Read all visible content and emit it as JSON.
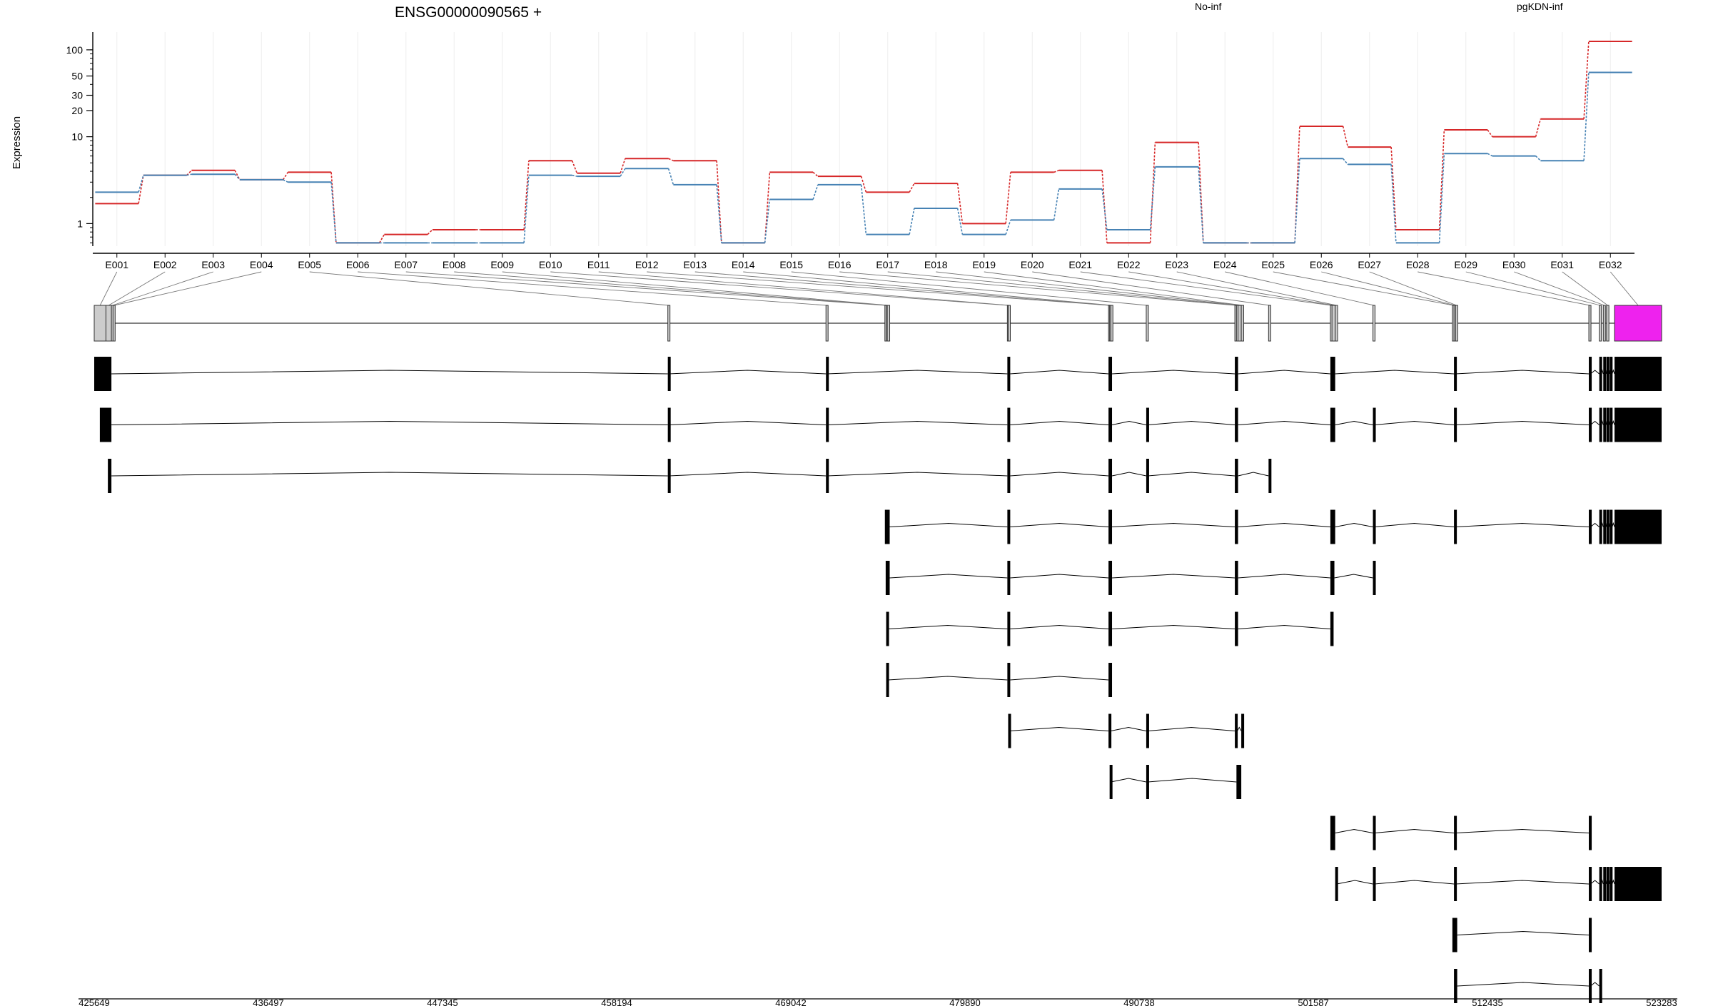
{
  "chart_data": {
    "type": "line",
    "title": "ENSG00000090565 +",
    "ylabel": "Expression",
    "yscale": "log",
    "ylim": [
      0.55,
      160
    ],
    "yticks": [
      1,
      10,
      20,
      30,
      50,
      100
    ],
    "grid": true,
    "legend_placement": "top",
    "categories": [
      "E001",
      "E002",
      "E003",
      "E004",
      "E005",
      "E006",
      "E007",
      "E008",
      "E009",
      "E010",
      "E011",
      "E012",
      "E013",
      "E014",
      "E015",
      "E016",
      "E017",
      "E018",
      "E019",
      "E020",
      "E021",
      "E022",
      "E023",
      "E024",
      "E025",
      "E026",
      "E027",
      "E028",
      "E029",
      "E030",
      "E031",
      "E032"
    ],
    "series": [
      {
        "name": "No-inf",
        "color": "#d62728",
        "values": [
          1.7,
          3.6,
          4.1,
          3.2,
          3.9,
          0.6,
          0.75,
          0.85,
          0.85,
          5.3,
          3.8,
          5.6,
          5.3,
          0.6,
          3.9,
          3.5,
          2.3,
          2.9,
          1.0,
          3.9,
          4.1,
          0.6,
          8.6,
          0.6,
          0.6,
          13.2,
          7.6,
          0.85,
          12.0,
          10.0,
          16.0,
          125.0
        ]
      },
      {
        "name": "pgKDN-inf",
        "color": "#4682b4",
        "values": [
          2.3,
          3.6,
          3.7,
          3.2,
          3.0,
          0.6,
          0.6,
          0.6,
          0.6,
          3.6,
          3.5,
          4.3,
          2.8,
          0.6,
          1.9,
          2.8,
          0.75,
          1.5,
          0.75,
          1.1,
          2.5,
          0.85,
          4.5,
          0.6,
          0.6,
          5.6,
          4.8,
          0.6,
          6.4,
          6.0,
          5.3,
          55.0
        ]
      }
    ],
    "genomic_axis": {
      "range": [
        425649,
        523283
      ],
      "tick_labels": [
        425649,
        436497,
        447345,
        458194,
        469042,
        479890,
        490738,
        501587,
        512435,
        523283
      ]
    },
    "exons": [
      {
        "id": "E001",
        "start": 425649,
        "end": 426380
      },
      {
        "id": "E002",
        "start": 426380,
        "end": 426720
      },
      {
        "id": "E003",
        "start": 426720,
        "end": 426820
      },
      {
        "id": "E004",
        "start": 426820,
        "end": 426850
      },
      {
        "id": "E005",
        "start": 461380,
        "end": 461450
      },
      {
        "id": "E006",
        "start": 471230,
        "end": 471300
      },
      {
        "id": "E007",
        "start": 474900,
        "end": 474980
      },
      {
        "id": "E008",
        "start": 474980,
        "end": 475050
      },
      {
        "id": "E009",
        "start": 475050,
        "end": 475200
      },
      {
        "id": "E010",
        "start": 482530,
        "end": 482580
      },
      {
        "id": "E011",
        "start": 482580,
        "end": 482700
      },
      {
        "id": "E012",
        "start": 488830,
        "end": 488900
      },
      {
        "id": "E013",
        "start": 488900,
        "end": 488970
      },
      {
        "id": "E014",
        "start": 488970,
        "end": 489050
      },
      {
        "id": "E015",
        "start": 491180,
        "end": 491280
      },
      {
        "id": "E016",
        "start": 496700,
        "end": 496800
      },
      {
        "id": "E017",
        "start": 496800,
        "end": 496900
      },
      {
        "id": "E018",
        "start": 496900,
        "end": 497100
      },
      {
        "id": "E019",
        "start": 497100,
        "end": 497250
      },
      {
        "id": "E020",
        "start": 498800,
        "end": 498900
      },
      {
        "id": "E021",
        "start": 502650,
        "end": 502750
      },
      {
        "id": "E022",
        "start": 502750,
        "end": 502950
      },
      {
        "id": "E023",
        "start": 502950,
        "end": 503100
      },
      {
        "id": "E024",
        "start": 505300,
        "end": 505400
      },
      {
        "id": "E025",
        "start": 510250,
        "end": 510350
      },
      {
        "id": "E026",
        "start": 510350,
        "end": 510450
      },
      {
        "id": "E027",
        "start": 510450,
        "end": 510550
      },
      {
        "id": "E028",
        "start": 518750,
        "end": 518860
      },
      {
        "id": "E029",
        "start": 519400,
        "end": 519520
      },
      {
        "id": "E030",
        "start": 519650,
        "end": 519780
      },
      {
        "id": "E031",
        "start": 519850,
        "end": 520000
      },
      {
        "id": "E032",
        "start": 520350,
        "end": 523283
      }
    ],
    "transcripts": [
      [
        [
          425649,
          426720
        ],
        [
          461380,
          461450
        ],
        [
          471230,
          471300
        ],
        [
          482530,
          482700
        ],
        [
          488830,
          489050
        ],
        [
          496700,
          496900
        ],
        [
          502650,
          502950
        ],
        [
          510350,
          510450
        ],
        [
          518750,
          518860
        ],
        [
          519400,
          519520
        ],
        [
          519650,
          519780
        ],
        [
          519850,
          520000
        ],
        [
          520050,
          520200
        ],
        [
          520350,
          523283
        ]
      ],
      [
        [
          426000,
          426720
        ],
        [
          461380,
          461450
        ],
        [
          471230,
          471300
        ],
        [
          482530,
          482700
        ],
        [
          488830,
          489050
        ],
        [
          491180,
          491280
        ],
        [
          496700,
          496900
        ],
        [
          502650,
          502950
        ],
        [
          505300,
          505400
        ],
        [
          510350,
          510450
        ],
        [
          518750,
          518860
        ],
        [
          519400,
          519520
        ],
        [
          519650,
          519780
        ],
        [
          519850,
          520000
        ],
        [
          520050,
          520200
        ],
        [
          520350,
          523283
        ]
      ],
      [
        [
          426500,
          426720
        ],
        [
          461380,
          461450
        ],
        [
          471230,
          471300
        ],
        [
          482530,
          482700
        ],
        [
          488830,
          489050
        ],
        [
          491180,
          491280
        ],
        [
          496700,
          496900
        ],
        [
          498800,
          498900
        ]
      ],
      [
        [
          474900,
          475200
        ],
        [
          482530,
          482700
        ],
        [
          488830,
          489050
        ],
        [
          496700,
          496900
        ],
        [
          502650,
          502950
        ],
        [
          505300,
          505400
        ],
        [
          510350,
          510450
        ],
        [
          518750,
          518860
        ],
        [
          519400,
          519520
        ],
        [
          519650,
          519780
        ],
        [
          519850,
          520000
        ],
        [
          520050,
          520200
        ],
        [
          520350,
          523283
        ]
      ],
      [
        [
          474950,
          475200
        ],
        [
          482530,
          482700
        ],
        [
          488830,
          489050
        ],
        [
          496700,
          496900
        ],
        [
          502650,
          502900
        ],
        [
          505300,
          505400
        ]
      ],
      [
        [
          474980,
          475100
        ],
        [
          482530,
          482700
        ],
        [
          488830,
          489050
        ],
        [
          496700,
          496900
        ],
        [
          502650,
          502850
        ]
      ],
      [
        [
          474980,
          475100
        ],
        [
          482530,
          482700
        ],
        [
          488830,
          489050
        ]
      ],
      [
        [
          482580,
          482650
        ],
        [
          488830,
          488970
        ],
        [
          491180,
          491280
        ],
        [
          496700,
          496850
        ],
        [
          497100,
          497250
        ]
      ],
      [
        [
          488900,
          488970
        ],
        [
          491180,
          491280
        ],
        [
          496800,
          497100
        ]
      ],
      [
        [
          502650,
          502950
        ],
        [
          505300,
          505400
        ],
        [
          510350,
          510450
        ],
        [
          518750,
          518860
        ]
      ],
      [
        [
          502950,
          503050
        ],
        [
          505300,
          505400
        ],
        [
          510350,
          510450
        ],
        [
          518750,
          518860
        ],
        [
          519400,
          519520
        ],
        [
          519650,
          519780
        ],
        [
          519850,
          520000
        ],
        [
          520050,
          520200
        ],
        [
          520350,
          523283
        ]
      ],
      [
        [
          510250,
          510550
        ],
        [
          518750,
          518860
        ]
      ],
      [
        [
          510350,
          510550
        ],
        [
          518750,
          518860
        ],
        [
          519400,
          519520
        ]
      ]
    ]
  }
}
